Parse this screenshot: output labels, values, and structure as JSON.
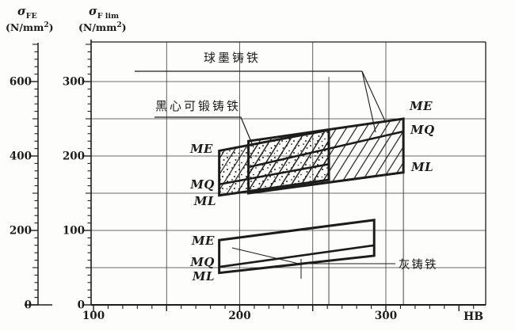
{
  "titles": {
    "sigma": "σ",
    "fe_sub": "FE",
    "flim_sub": "F lim",
    "unit_open": "(N/mm",
    "unit_sup": "2",
    "unit_close": ")"
  },
  "grade_labels": {
    "ME": "ME",
    "MQ": "MQ",
    "ML": "ML"
  },
  "chart_data": {
    "type": "area",
    "title": "",
    "x_axis": {
      "label": "HB",
      "ticks": [
        100,
        200,
        300
      ],
      "minor_step": 10,
      "range": [
        100,
        360
      ]
    },
    "y_axis_outer": {
      "label": "σFE (N/mm²)",
      "ticks": [
        0,
        200,
        400,
        600
      ],
      "minor_step": 20,
      "range": [
        0,
        700
      ]
    },
    "y_axis_inner": {
      "label": "σF lim (N/mm²)",
      "ticks": [
        0,
        100,
        200,
        300
      ],
      "minor_step": 10,
      "range": [
        0,
        350
      ]
    },
    "note": "outer axis sigma_FE = 2 x sigma_F_lim (dual scale)",
    "gridlines": {
      "horizontal_sigma_flim": [
        50,
        100,
        150,
        200,
        250,
        300
      ],
      "vertical_hb": [
        150,
        200,
        250,
        300
      ]
    },
    "bands": [
      {
        "id": "malleable",
        "label": "黑心可锻铸铁",
        "pattern": "hatch+dots",
        "hb": [
          186,
          261
        ],
        "lines": {
          "ME": [
            207,
            235
          ],
          "MQ": [
            162,
            189
          ],
          "ML": [
            147,
            168
          ]
        }
      },
      {
        "id": "nodular",
        "label": "球墨铸铁",
        "pattern": "hatch",
        "hb": [
          206,
          312
        ],
        "lines": {
          "ME": [
            220,
            250
          ],
          "MQ": [
            185,
            233
          ],
          "ML": [
            150,
            178
          ]
        }
      },
      {
        "id": "grey",
        "label": "灰铸铁",
        "pattern": "none",
        "hb": [
          186,
          292
        ],
        "lines": {
          "ME": [
            87,
            114
          ],
          "MQ": [
            51,
            80
          ],
          "ML": [
            43,
            66
          ]
        }
      }
    ]
  }
}
